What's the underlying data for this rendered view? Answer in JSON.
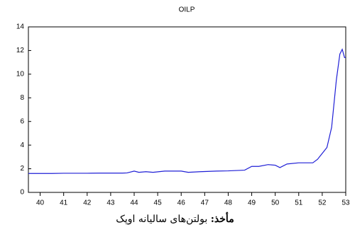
{
  "chart_data": {
    "type": "line",
    "title": "OILP",
    "x": [
      39.5,
      40,
      40.5,
      41,
      41.5,
      42,
      42.5,
      43,
      43.5,
      43.7,
      44,
      44.2,
      44.5,
      44.8,
      45.3,
      46,
      46.3,
      46.8,
      47.5,
      48,
      48.7,
      49,
      49.3,
      49.7,
      50,
      50.2,
      50.5,
      51,
      51.6,
      51.8,
      52,
      52.2,
      52.4,
      52.6,
      52.75,
      52.85,
      52.95,
      53
    ],
    "series": [
      {
        "name": "OILP",
        "color": "#1f1fd6",
        "values": [
          1.6,
          1.6,
          1.6,
          1.62,
          1.62,
          1.62,
          1.63,
          1.63,
          1.63,
          1.65,
          1.8,
          1.7,
          1.75,
          1.7,
          1.8,
          1.8,
          1.7,
          1.75,
          1.8,
          1.82,
          1.88,
          2.2,
          2.2,
          2.35,
          2.3,
          2.1,
          2.4,
          2.5,
          2.5,
          2.8,
          3.3,
          3.8,
          5.5,
          9.5,
          11.7,
          12.1,
          11.4,
          11.4
        ]
      }
    ],
    "xlim": [
      39.5,
      53
    ],
    "xticks": [
      40,
      41,
      42,
      43,
      44,
      45,
      46,
      47,
      48,
      49,
      50,
      51,
      52,
      53
    ],
    "ylim": [
      0,
      14
    ],
    "yticks": [
      0,
      2,
      4,
      6,
      8,
      10,
      12,
      14
    ],
    "caption": {
      "label": "مأخذ:",
      "text": "بولتن‌های سالیانه اوپک"
    }
  }
}
